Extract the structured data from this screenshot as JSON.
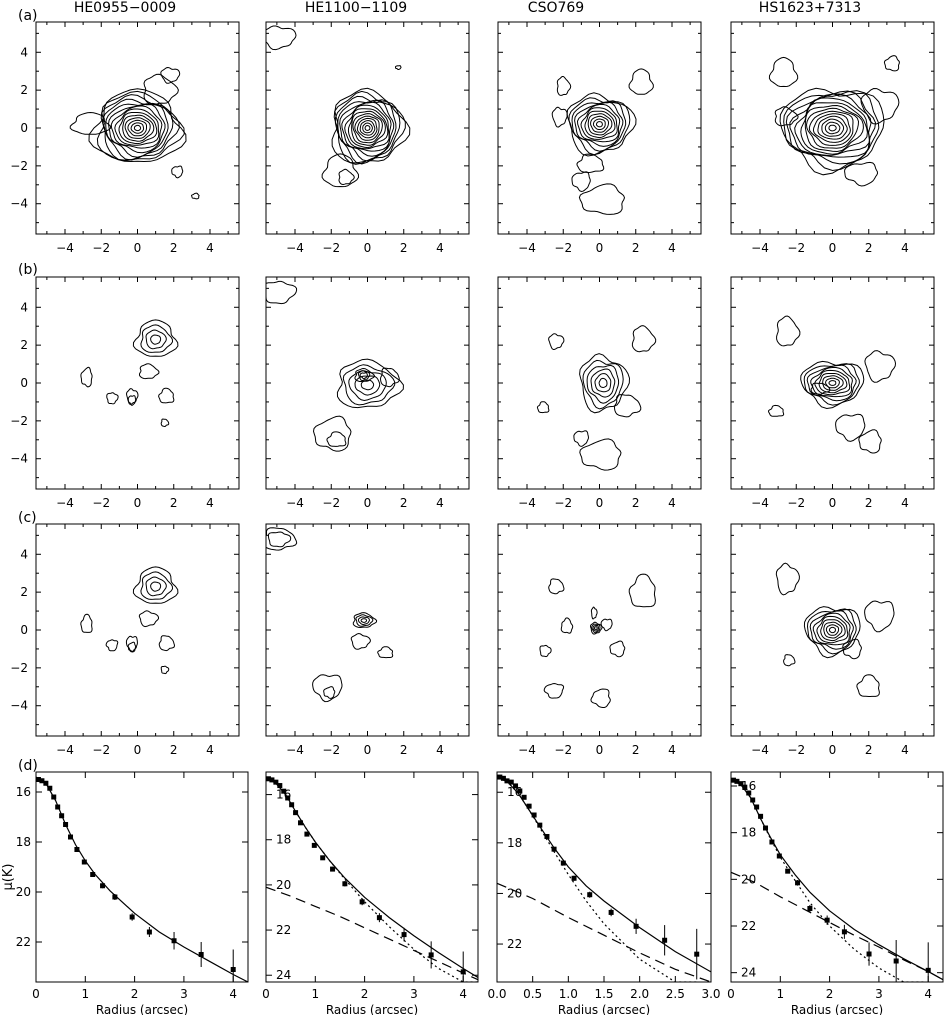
{
  "figure": {
    "column_titles": [
      "HE0955−0009",
      "HE1100−1109",
      "CSO769",
      "HS1623+7313"
    ],
    "row_labels": [
      "(a)",
      "(b)",
      "(c)",
      "(d)"
    ],
    "contour_axis": {
      "ticks": [
        -4,
        -2,
        0,
        2,
        4
      ],
      "tick_labels": [
        "−4",
        "−2",
        "0",
        "2",
        "4"
      ],
      "range": [
        -5.6,
        5.6
      ]
    }
  },
  "chart_data": [
    {
      "type": "line",
      "name": "profile-he0955",
      "xlabel": "Radius (arcsec)",
      "ylabel": "μ(K)",
      "xlim": [
        0,
        4.3
      ],
      "ylim": [
        23.6,
        15.2
      ],
      "x_ticks": [
        0,
        1,
        2,
        3,
        4
      ],
      "x_tick_labels": [
        "0",
        "1",
        "2",
        "3",
        "4"
      ],
      "y_ticks": [
        16,
        18,
        20,
        22
      ],
      "y_tick_labels": [
        "16",
        "18",
        "20",
        "22"
      ],
      "points": {
        "x": [
          0.05,
          0.12,
          0.2,
          0.28,
          0.36,
          0.44,
          0.52,
          0.6,
          0.7,
          0.83,
          0.98,
          1.15,
          1.35,
          1.6,
          1.95,
          2.3,
          2.8,
          3.35,
          4.0
        ],
        "y": [
          15.5,
          15.55,
          15.65,
          15.85,
          16.2,
          16.6,
          16.95,
          17.3,
          17.8,
          18.3,
          18.8,
          19.3,
          19.75,
          20.2,
          21.0,
          21.6,
          21.95,
          22.5,
          23.1
        ],
        "err": [
          0.02,
          0.02,
          0.02,
          0.02,
          0.03,
          0.03,
          0.04,
          0.04,
          0.05,
          0.05,
          0.06,
          0.08,
          0.1,
          0.12,
          0.15,
          0.2,
          0.35,
          0.5,
          0.8
        ]
      },
      "total_fit": {
        "x": [
          0,
          0.2,
          0.4,
          0.6,
          0.8,
          1.0,
          1.2,
          1.5,
          2.0,
          2.5,
          3.0,
          3.5,
          4.0,
          4.3
        ],
        "y": [
          15.4,
          15.65,
          16.35,
          17.3,
          18.1,
          18.75,
          19.3,
          19.95,
          20.85,
          21.6,
          22.2,
          22.75,
          23.3,
          23.6
        ]
      }
    },
    {
      "type": "line",
      "name": "profile-he1100",
      "xlabel": "Radius (arcsec)",
      "ylabel": "",
      "xlim": [
        0,
        4.3
      ],
      "ylim": [
        24.3,
        15.0
      ],
      "x_ticks": [
        0,
        1,
        2,
        3,
        4
      ],
      "x_tick_labels": [
        "0",
        "1",
        "2",
        "3",
        "4"
      ],
      "y_ticks": [
        16,
        18,
        20,
        22,
        24
      ],
      "y_tick_labels": [
        "16",
        "18",
        "20",
        "22",
        "24"
      ],
      "points": {
        "x": [
          0.05,
          0.12,
          0.2,
          0.28,
          0.36,
          0.44,
          0.52,
          0.6,
          0.7,
          0.83,
          0.98,
          1.15,
          1.35,
          1.6,
          1.95,
          2.3,
          2.8,
          3.35,
          4.0
        ],
        "y": [
          15.3,
          15.35,
          15.45,
          15.6,
          15.85,
          16.15,
          16.45,
          16.8,
          17.25,
          17.75,
          18.25,
          18.8,
          19.3,
          19.95,
          20.75,
          21.45,
          22.2,
          23.1,
          23.85
        ],
        "err": [
          0.02,
          0.02,
          0.02,
          0.02,
          0.03,
          0.03,
          0.03,
          0.04,
          0.05,
          0.05,
          0.06,
          0.08,
          0.1,
          0.12,
          0.15,
          0.2,
          0.3,
          0.6,
          0.9
        ]
      },
      "total_fit": {
        "x": [
          0,
          0.2,
          0.4,
          0.6,
          0.8,
          1.0,
          1.3,
          1.6,
          2.0,
          2.5,
          3.0,
          3.5,
          4.0,
          4.3
        ],
        "y": [
          15.25,
          15.5,
          16.0,
          16.75,
          17.45,
          18.1,
          18.95,
          19.7,
          20.55,
          21.45,
          22.25,
          23.0,
          23.7,
          24.1
        ]
      },
      "bulge_fit": {
        "x": [
          0,
          0.2,
          0.4,
          0.6,
          0.8,
          1.0,
          1.3,
          1.6,
          2.0,
          2.5,
          3.0,
          3.5,
          4.0,
          4.3
        ],
        "y": [
          15.25,
          15.5,
          16.0,
          16.75,
          17.45,
          18.1,
          18.95,
          19.75,
          20.75,
          21.85,
          22.85,
          23.7,
          24.3,
          24.3
        ]
      },
      "disk_fit": {
        "x": [
          0,
          0.5,
          1.0,
          1.5,
          2.0,
          2.5,
          3.0,
          3.5,
          4.0,
          4.3
        ],
        "y": [
          20.1,
          20.5,
          20.95,
          21.4,
          21.9,
          22.4,
          22.9,
          23.4,
          23.9,
          24.2
        ]
      }
    },
    {
      "type": "line",
      "name": "profile-cso769",
      "xlabel": "Radius (arcsec)",
      "ylabel": "",
      "xlim": [
        0,
        3.0
      ],
      "ylim": [
        23.5,
        15.2
      ],
      "x_ticks": [
        0,
        0.5,
        1.0,
        1.5,
        2.0,
        2.5,
        3.0
      ],
      "x_tick_labels": [
        "0.0",
        "0.5",
        "1.0",
        "1.5",
        "2.0",
        "2.5",
        "3.0"
      ],
      "y_ticks": [
        16,
        18,
        20,
        22
      ],
      "y_tick_labels": [
        "16",
        "18",
        "20",
        "22"
      ],
      "points": {
        "x": [
          0.04,
          0.09,
          0.14,
          0.2,
          0.26,
          0.32,
          0.38,
          0.45,
          0.52,
          0.6,
          0.7,
          0.8,
          0.93,
          1.08,
          1.3,
          1.6,
          1.95,
          2.35,
          2.8
        ],
        "y": [
          15.4,
          15.45,
          15.55,
          15.6,
          15.75,
          15.95,
          16.2,
          16.55,
          16.9,
          17.3,
          17.75,
          18.25,
          18.8,
          19.4,
          20.05,
          20.75,
          21.3,
          21.85,
          22.4
        ],
        "err": [
          0.02,
          0.02,
          0.02,
          0.02,
          0.03,
          0.03,
          0.04,
          0.04,
          0.05,
          0.05,
          0.06,
          0.07,
          0.08,
          0.1,
          0.12,
          0.15,
          0.3,
          0.6,
          1.0
        ]
      },
      "total_fit": {
        "x": [
          0,
          0.15,
          0.3,
          0.45,
          0.6,
          0.8,
          1.0,
          1.25,
          1.5,
          2.0,
          2.5,
          3.0
        ],
        "y": [
          15.4,
          15.6,
          16.05,
          16.7,
          17.35,
          18.2,
          18.95,
          19.7,
          20.3,
          21.35,
          22.3,
          23.1
        ]
      },
      "bulge_fit": {
        "x": [
          0,
          0.15,
          0.3,
          0.45,
          0.6,
          0.8,
          1.0,
          1.25,
          1.5,
          2.0,
          2.5,
          2.8
        ],
        "y": [
          15.4,
          15.6,
          16.05,
          16.7,
          17.4,
          18.35,
          19.25,
          20.3,
          21.2,
          22.6,
          23.5,
          23.5
        ]
      },
      "disk_fit": {
        "x": [
          0,
          0.5,
          1.0,
          1.5,
          2.0,
          2.5,
          3.0
        ],
        "y": [
          19.6,
          20.2,
          20.95,
          21.65,
          22.35,
          23.0,
          23.5
        ]
      }
    },
    {
      "type": "line",
      "name": "profile-hs1623",
      "xlabel": "Radius (arcsec)",
      "ylabel": "",
      "xlim": [
        0,
        4.3
      ],
      "ylim": [
        24.4,
        15.4
      ],
      "x_ticks": [
        0,
        1,
        2,
        3,
        4
      ],
      "x_tick_labels": [
        "0",
        "1",
        "2",
        "3",
        "4"
      ],
      "y_ticks": [
        16,
        18,
        20,
        22,
        24
      ],
      "y_tick_labels": [
        "16",
        "18",
        "20",
        "22",
        "24"
      ],
      "points": {
        "x": [
          0.05,
          0.12,
          0.2,
          0.28,
          0.36,
          0.44,
          0.52,
          0.6,
          0.7,
          0.83,
          0.98,
          1.15,
          1.35,
          1.6,
          1.95,
          2.3,
          2.8,
          3.35,
          4.0
        ],
        "y": [
          15.75,
          15.8,
          15.9,
          16.05,
          16.3,
          16.6,
          16.9,
          17.3,
          17.8,
          18.4,
          19.0,
          19.65,
          20.15,
          21.25,
          21.75,
          22.25,
          23.2,
          23.5,
          23.9
        ],
        "err": [
          0.02,
          0.02,
          0.02,
          0.03,
          0.03,
          0.03,
          0.04,
          0.04,
          0.05,
          0.06,
          0.07,
          0.09,
          0.12,
          0.15,
          0.2,
          0.3,
          0.5,
          0.9,
          1.2
        ]
      },
      "total_fit": {
        "x": [
          0,
          0.2,
          0.4,
          0.6,
          0.8,
          1.0,
          1.3,
          1.6,
          2.0,
          2.5,
          3.0,
          3.5,
          4.0,
          4.3
        ],
        "y": [
          15.7,
          15.95,
          16.5,
          17.4,
          18.2,
          18.95,
          19.8,
          20.55,
          21.35,
          22.15,
          22.8,
          23.4,
          23.95,
          24.3
        ]
      },
      "bulge_fit": {
        "x": [
          0,
          0.2,
          0.4,
          0.6,
          0.8,
          1.0,
          1.3,
          1.6,
          2.0,
          2.5,
          3.0,
          3.5,
          3.9
        ],
        "y": [
          15.7,
          15.95,
          16.5,
          17.4,
          18.25,
          19.05,
          20.05,
          21.0,
          22.0,
          23.0,
          23.8,
          24.4,
          24.4
        ]
      },
      "disk_fit": {
        "x": [
          0,
          0.5,
          1.0,
          1.5,
          2.0,
          2.5,
          3.0,
          3.5,
          4.0,
          4.3
        ],
        "y": [
          19.7,
          20.15,
          20.75,
          21.3,
          21.85,
          22.4,
          22.9,
          23.45,
          23.95,
          24.3
        ]
      }
    }
  ]
}
